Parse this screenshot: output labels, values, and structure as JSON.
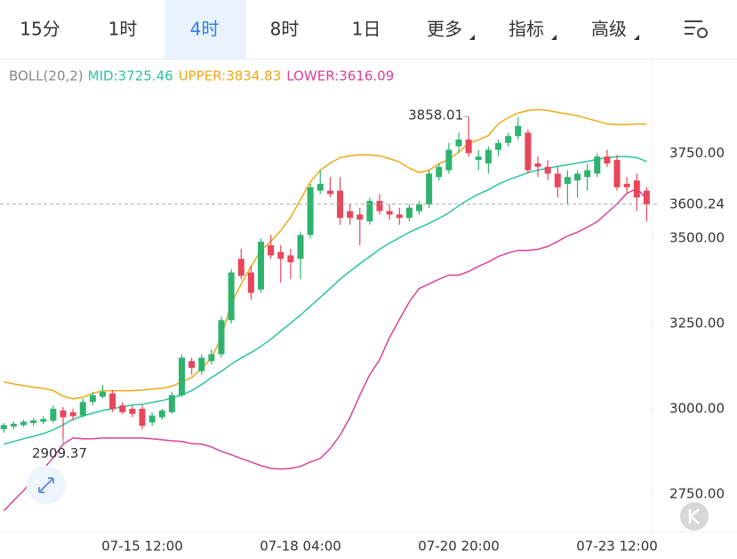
{
  "tabs": [
    "15分",
    "1时",
    "4时",
    "8时",
    "1日",
    "更多",
    "指标",
    "高级"
  ],
  "active_tab": "4时",
  "indicator": "BOLL(20,2)",
  "chart_data": {
    "type": "candlestick",
    "categories": [
      null,
      null,
      null,
      null,
      null,
      null,
      null,
      null,
      null,
      null,
      null,
      null,
      null,
      null,
      "07-15 12:00",
      null,
      null,
      null,
      null,
      null,
      null,
      null,
      null,
      null,
      null,
      null,
      null,
      null,
      null,
      null,
      "07-18 04:00",
      null,
      null,
      null,
      null,
      null,
      null,
      null,
      null,
      null,
      null,
      null,
      null,
      null,
      null,
      null,
      "07-20 20:00",
      null,
      null,
      null,
      null,
      null,
      null,
      null,
      null,
      null,
      null,
      null,
      null,
      null,
      null,
      null,
      "07-23 12:00",
      null,
      null,
      null
    ],
    "open": [
      2940,
      2948,
      2952,
      2958,
      2962,
      2965,
      2995,
      2990,
      2980,
      3020,
      3035,
      3045,
      3010,
      3000,
      3000,
      2960,
      2975,
      2990,
      3040,
      3140,
      3110,
      3140,
      3160,
      3260,
      3440,
      3400,
      3350,
      3480,
      3460,
      3450,
      3440,
      3510,
      3640,
      3640,
      3640,
      3580,
      3570,
      3550,
      3610,
      3580,
      3570,
      3560,
      3580,
      3600,
      3680,
      3700,
      3770,
      3790,
      3730,
      3720,
      3760,
      3780,
      3800,
      3810,
      3720,
      3710,
      3690,
      3660,
      3670,
      3680,
      3690,
      3740,
      3730,
      3660,
      3670,
      3640
    ],
    "high": [
      2958,
      2962,
      2968,
      2972,
      2978,
      3010,
      3005,
      3000,
      3030,
      3050,
      3070,
      3055,
      3020,
      3008,
      3010,
      2990,
      3000,
      3050,
      3160,
      3150,
      3160,
      3175,
      3270,
      3410,
      3470,
      3420,
      3500,
      3510,
      3480,
      3470,
      3520,
      3660,
      3700,
      3680,
      3680,
      3600,
      3590,
      3620,
      3630,
      3600,
      3590,
      3600,
      3610,
      3700,
      3720,
      3780,
      3810,
      3858.01,
      3760,
      3770,
      3790,
      3810,
      3855,
      3820,
      3740,
      3730,
      3710,
      3700,
      3700,
      3720,
      3750,
      3760,
      3745,
      3680,
      3690,
      3650
    ],
    "low": [
      2930,
      2940,
      2946,
      2950,
      2955,
      2960,
      2909.37,
      2965,
      2975,
      3010,
      3030,
      2990,
      2985,
      2975,
      2940,
      2950,
      2968,
      2985,
      3035,
      3100,
      3100,
      3130,
      3150,
      3250,
      3380,
      3320,
      3340,
      3440,
      3370,
      3380,
      3380,
      3500,
      3630,
      3620,
      3540,
      3540,
      3480,
      3540,
      3570,
      3555,
      3540,
      3550,
      3570,
      3590,
      3670,
      3690,
      3750,
      3740,
      3700,
      3690,
      3740,
      3770,
      3790,
      3690,
      3680,
      3670,
      3620,
      3600,
      3620,
      3640,
      3680,
      3710,
      3640,
      3630,
      3580,
      3550
    ],
    "close": [
      2952,
      2956,
      2962,
      2966,
      2970,
      3000,
      2975,
      2978,
      3020,
      3040,
      3050,
      3000,
      2990,
      2985,
      2950,
      2980,
      2995,
      3040,
      3150,
      3120,
      3150,
      3160,
      3260,
      3400,
      3390,
      3340,
      3490,
      3450,
      3440,
      3430,
      3510,
      3650,
      3660,
      3630,
      3560,
      3560,
      3555,
      3610,
      3580,
      3570,
      3560,
      3590,
      3600,
      3690,
      3710,
      3760,
      3790,
      3750,
      3740,
      3760,
      3780,
      3800,
      3830,
      3700,
      3710,
      3690,
      3650,
      3680,
      3690,
      3700,
      3740,
      3720,
      3650,
      3650,
      3620,
      3600.24
    ],
    "up_color": "#2fb36e",
    "down_color": "#e8465a",
    "overlays": [
      {
        "name": "MID:3725.46",
        "color": "#2cc2a0",
        "values": [
          2896,
          2904,
          2912,
          2919,
          2927,
          2938,
          2953,
          2969,
          2979,
          2987,
          2995,
          3000,
          3006,
          3011,
          3013,
          3019,
          3024,
          3032,
          3040,
          3053,
          3071,
          3092,
          3110,
          3131,
          3149,
          3165,
          3183,
          3204,
          3228,
          3251,
          3275,
          3301,
          3327,
          3353,
          3380,
          3403,
          3426,
          3447,
          3468,
          3486,
          3502,
          3518,
          3531,
          3544,
          3559,
          3575,
          3596,
          3614,
          3630,
          3643,
          3659,
          3672,
          3682,
          3693,
          3700,
          3706,
          3711,
          3716,
          3721,
          3726,
          3732,
          3737,
          3740,
          3740,
          3737,
          3725.46
        ]
      },
      {
        "name": "UPPER:3834.83",
        "color": "#f0a818",
        "values": [
          3079,
          3073,
          3068,
          3063,
          3060,
          3053,
          3037,
          3029,
          3034,
          3045,
          3053,
          3053,
          3053,
          3053,
          3055,
          3058,
          3060,
          3066,
          3079,
          3092,
          3118,
          3149,
          3209,
          3309,
          3366,
          3418,
          3465,
          3491,
          3523,
          3562,
          3614,
          3666,
          3700,
          3721,
          3737,
          3742,
          3745,
          3745,
          3742,
          3734,
          3724,
          3706,
          3693,
          3700,
          3719,
          3732,
          3753,
          3779,
          3789,
          3802,
          3836,
          3854,
          3868,
          3875,
          3878,
          3875,
          3870,
          3865,
          3860,
          3852,
          3844,
          3836,
          3834,
          3834,
          3836,
          3834.83
        ]
      },
      {
        "name": "LOWER:3616.09",
        "color": "#d9429a",
        "values": [
          2700,
          2731,
          2760,
          2791,
          2823,
          2857,
          2896,
          2914,
          2912,
          2912,
          2914,
          2914,
          2914,
          2914,
          2914,
          2912,
          2909,
          2906,
          2904,
          2898,
          2896,
          2888,
          2875,
          2865,
          2854,
          2844,
          2833,
          2825,
          2823,
          2825,
          2831,
          2844,
          2854,
          2883,
          2922,
          2974,
          3040,
          3100,
          3144,
          3209,
          3262,
          3314,
          3353,
          3366,
          3380,
          3392,
          3392,
          3403,
          3418,
          3431,
          3447,
          3457,
          3465,
          3465,
          3468,
          3476,
          3491,
          3507,
          3518,
          3533,
          3549,
          3575,
          3601,
          3632,
          3646,
          3616.09
        ]
      }
    ],
    "ylim": [
      2640,
      4030
    ],
    "yticks": [
      {
        "value": 2750,
        "label": "2750.00"
      },
      {
        "value": 3000,
        "label": "3000.00"
      },
      {
        "value": 3250,
        "label": "3250.00"
      },
      {
        "value": 3500,
        "label": "3500.00"
      },
      {
        "value": 3750,
        "label": "3750.00"
      }
    ],
    "grid": false
  }
}
